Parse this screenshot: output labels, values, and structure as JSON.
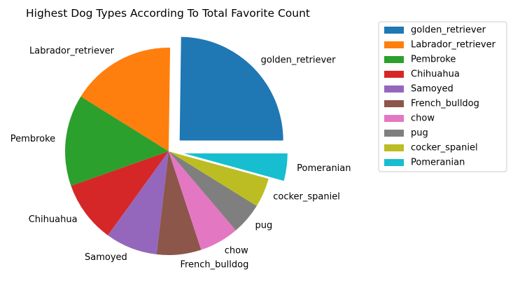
{
  "chart_data": {
    "type": "pie",
    "title": "Highest Dog Types According To Total Favorite Count",
    "legend_position": "right",
    "categories": [
      "golden_retriever",
      "Labrador_retriever",
      "Pembroke",
      "Chihuahua",
      "Samoyed",
      "French_bulldog",
      "chow",
      "pug",
      "cocker_spaniel",
      "Pomeranian"
    ],
    "values": [
      25.0,
      16.5,
      14.4,
      9.7,
      8.2,
      7.0,
      6.2,
      5.0,
      4.6,
      4.3
    ],
    "exploded": [
      "golden_retriever",
      "Pomeranian"
    ],
    "colors": [
      "#1f77b4",
      "#ff7f0e",
      "#2ca02c",
      "#d62728",
      "#9467bd",
      "#8c564b",
      "#e377c2",
      "#7f7f7f",
      "#bcbd22",
      "#17becf"
    ]
  }
}
